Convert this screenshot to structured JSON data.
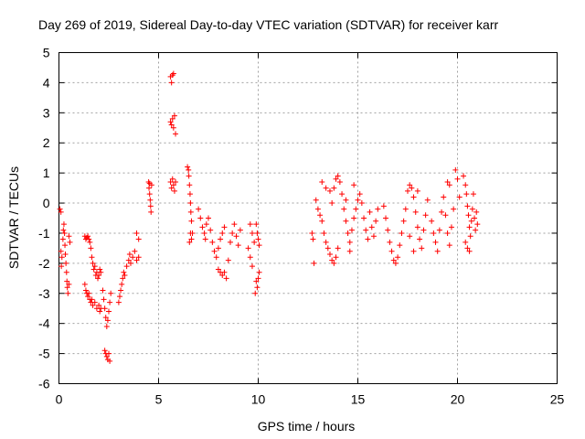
{
  "chart_data": {
    "type": "scatter",
    "title": "Day 269 of 2019, Sidereal Day-to-day VTEC variation (SDTVAR) for receiver karr",
    "xlabel": "GPS time / hours",
    "ylabel": "SDTVAR / TECUs",
    "xlim": [
      0,
      25
    ],
    "ylim": [
      -6,
      5
    ],
    "xticks": [
      0,
      5,
      10,
      15,
      20,
      25
    ],
    "yticks": [
      -6,
      -5,
      -4,
      -3,
      -2,
      -1,
      0,
      1,
      2,
      3,
      4,
      5
    ],
    "grid": true,
    "marker": "plus",
    "color": "#ff0000",
    "series": [
      {
        "name": "SDTVAR",
        "points": [
          [
            0.05,
            -0.2
          ],
          [
            0.1,
            -0.3
          ],
          [
            0.1,
            -1.6
          ],
          [
            0.12,
            -2.1
          ],
          [
            0.15,
            -1.8
          ],
          [
            0.2,
            -1.2
          ],
          [
            0.22,
            -0.9
          ],
          [
            0.25,
            -0.7
          ],
          [
            0.28,
            -1.0
          ],
          [
            0.3,
            -1.4
          ],
          [
            0.32,
            -1.7
          ],
          [
            0.35,
            -2.0
          ],
          [
            0.38,
            -2.3
          ],
          [
            0.4,
            -2.6
          ],
          [
            0.42,
            -2.8
          ],
          [
            0.45,
            -3.0
          ],
          [
            0.5,
            -2.7
          ],
          [
            0.5,
            -1.1
          ],
          [
            0.55,
            -1.3
          ],
          [
            1.3,
            -1.1
          ],
          [
            1.35,
            -1.2
          ],
          [
            1.4,
            -1.15
          ],
          [
            1.45,
            -1.1
          ],
          [
            1.5,
            -1.2
          ],
          [
            1.55,
            -1.3
          ],
          [
            1.6,
            -1.5
          ],
          [
            1.65,
            -1.8
          ],
          [
            1.7,
            -2.0
          ],
          [
            1.75,
            -2.2
          ],
          [
            1.8,
            -2.1
          ],
          [
            1.85,
            -2.4
          ],
          [
            1.9,
            -2.3
          ],
          [
            1.95,
            -2.5
          ],
          [
            2.0,
            -2.4
          ],
          [
            2.05,
            -2.2
          ],
          [
            2.1,
            -2.3
          ],
          [
            1.3,
            -2.7
          ],
          [
            1.35,
            -2.9
          ],
          [
            1.4,
            -3.0
          ],
          [
            1.45,
            -3.1
          ],
          [
            1.5,
            -3.0
          ],
          [
            1.55,
            -3.2
          ],
          [
            1.6,
            -3.3
          ],
          [
            1.65,
            -3.2
          ],
          [
            1.7,
            -3.4
          ],
          [
            1.8,
            -3.3
          ],
          [
            1.9,
            -3.5
          ],
          [
            2.0,
            -3.4
          ],
          [
            2.05,
            -3.6
          ],
          [
            2.1,
            -3.5
          ],
          [
            2.2,
            -2.9
          ],
          [
            2.25,
            -3.2
          ],
          [
            2.3,
            -3.5
          ],
          [
            2.35,
            -3.8
          ],
          [
            2.4,
            -4.1
          ],
          [
            2.45,
            -3.9
          ],
          [
            2.5,
            -3.6
          ],
          [
            2.55,
            -3.3
          ],
          [
            2.6,
            -3.0
          ],
          [
            2.3,
            -4.9
          ],
          [
            2.35,
            -5.0
          ],
          [
            2.4,
            -5.1
          ],
          [
            2.45,
            -5.2
          ],
          [
            2.5,
            -5.0
          ],
          [
            2.55,
            -5.25
          ],
          [
            3.0,
            -3.3
          ],
          [
            3.05,
            -3.1
          ],
          [
            3.1,
            -2.9
          ],
          [
            3.15,
            -2.7
          ],
          [
            3.2,
            -2.5
          ],
          [
            3.25,
            -2.3
          ],
          [
            3.3,
            -2.4
          ],
          [
            3.4,
            -2.1
          ],
          [
            3.5,
            -1.9
          ],
          [
            3.55,
            -1.7
          ],
          [
            3.6,
            -2.0
          ],
          [
            3.7,
            -1.8
          ],
          [
            3.8,
            -1.6
          ],
          [
            3.9,
            -1.9
          ],
          [
            4.0,
            -1.8
          ],
          [
            3.9,
            -1.0
          ],
          [
            4.0,
            -1.2
          ],
          [
            4.5,
            0.7
          ],
          [
            4.52,
            0.5
          ],
          [
            4.55,
            0.3
          ],
          [
            4.58,
            0.1
          ],
          [
            4.6,
            -0.1
          ],
          [
            4.62,
            -0.3
          ],
          [
            4.65,
            0.6
          ],
          [
            4.55,
            0.65
          ],
          [
            5.6,
            4.2
          ],
          [
            5.65,
            4.0
          ],
          [
            5.7,
            4.25
          ],
          [
            5.75,
            4.3
          ],
          [
            5.6,
            2.7
          ],
          [
            5.65,
            2.6
          ],
          [
            5.7,
            2.8
          ],
          [
            5.75,
            2.5
          ],
          [
            5.8,
            2.9
          ],
          [
            5.85,
            2.3
          ],
          [
            5.6,
            0.7
          ],
          [
            5.65,
            0.5
          ],
          [
            5.7,
            0.8
          ],
          [
            5.75,
            0.6
          ],
          [
            5.8,
            0.4
          ],
          [
            5.85,
            0.7
          ],
          [
            6.45,
            1.2
          ],
          [
            6.5,
            1.1
          ],
          [
            6.52,
            0.9
          ],
          [
            6.55,
            0.6
          ],
          [
            6.58,
            0.3
          ],
          [
            6.6,
            0.0
          ],
          [
            6.62,
            -0.3
          ],
          [
            6.65,
            -0.6
          ],
          [
            6.6,
            -1.0
          ],
          [
            6.55,
            -1.3
          ],
          [
            6.65,
            -1.2
          ],
          [
            6.7,
            -1.0
          ],
          [
            7.0,
            -0.2
          ],
          [
            7.1,
            -0.5
          ],
          [
            7.2,
            -0.8
          ],
          [
            7.3,
            -1.0
          ],
          [
            7.35,
            -1.2
          ],
          [
            7.4,
            -0.7
          ],
          [
            7.5,
            -0.5
          ],
          [
            7.6,
            -0.9
          ],
          [
            7.7,
            -1.3
          ],
          [
            7.8,
            -1.6
          ],
          [
            7.9,
            -1.8
          ],
          [
            8.0,
            -1.5
          ],
          [
            8.1,
            -1.2
          ],
          [
            8.2,
            -1.0
          ],
          [
            8.3,
            -0.8
          ],
          [
            8.0,
            -2.2
          ],
          [
            8.1,
            -2.3
          ],
          [
            8.2,
            -2.4
          ],
          [
            8.3,
            -2.3
          ],
          [
            8.4,
            -2.5
          ],
          [
            8.5,
            -1.9
          ],
          [
            8.6,
            -1.3
          ],
          [
            8.7,
            -1.0
          ],
          [
            8.8,
            -0.7
          ],
          [
            8.9,
            -1.1
          ],
          [
            9.0,
            -1.4
          ],
          [
            9.1,
            -0.9
          ],
          [
            9.5,
            -1.5
          ],
          [
            9.6,
            -1.8
          ],
          [
            9.7,
            -1.0
          ],
          [
            9.8,
            -1.3
          ],
          [
            9.7,
            -2.1
          ],
          [
            9.6,
            -0.7
          ],
          [
            9.9,
            -0.7
          ],
          [
            9.95,
            -1.0
          ],
          [
            10.0,
            -1.2
          ],
          [
            10.05,
            -1.4
          ],
          [
            9.9,
            -2.6
          ],
          [
            9.95,
            -2.8
          ],
          [
            10.0,
            -2.5
          ],
          [
            10.05,
            -2.3
          ],
          [
            9.85,
            -3.0
          ],
          [
            12.7,
            -1.0
          ],
          [
            12.75,
            -1.2
          ],
          [
            12.8,
            -2.0
          ],
          [
            12.9,
            0.1
          ],
          [
            13.0,
            -0.2
          ],
          [
            13.1,
            -0.4
          ],
          [
            13.2,
            -0.6
          ],
          [
            13.3,
            -1.0
          ],
          [
            13.4,
            -1.3
          ],
          [
            13.5,
            -1.5
          ],
          [
            13.6,
            -1.7
          ],
          [
            13.7,
            -1.9
          ],
          [
            13.8,
            -2.0
          ],
          [
            13.9,
            -1.8
          ],
          [
            14.0,
            -1.5
          ],
          [
            13.2,
            0.7
          ],
          [
            13.4,
            0.5
          ],
          [
            13.6,
            0.4
          ],
          [
            13.7,
            0.0
          ],
          [
            13.8,
            0.5
          ],
          [
            13.9,
            0.8
          ],
          [
            14.0,
            0.9
          ],
          [
            14.1,
            0.7
          ],
          [
            14.2,
            0.3
          ],
          [
            14.3,
            -0.2
          ],
          [
            14.4,
            -0.6
          ],
          [
            14.5,
            -1.0
          ],
          [
            14.6,
            -1.3
          ],
          [
            14.7,
            -0.9
          ],
          [
            14.8,
            -0.5
          ],
          [
            14.9,
            -0.2
          ],
          [
            15.0,
            0.1
          ],
          [
            15.1,
            0.3
          ],
          [
            15.2,
            0.0
          ],
          [
            15.3,
            -0.5
          ],
          [
            15.4,
            -0.9
          ],
          [
            15.5,
            -1.2
          ],
          [
            14.4,
            0.1
          ],
          [
            14.6,
            -1.6
          ],
          [
            14.8,
            0.6
          ],
          [
            15.6,
            -0.3
          ],
          [
            15.7,
            -0.8
          ],
          [
            15.8,
            -1.1
          ],
          [
            15.9,
            -0.6
          ],
          [
            16.0,
            -0.2
          ],
          [
            16.3,
            -0.1
          ],
          [
            16.4,
            -0.5
          ],
          [
            16.5,
            -0.9
          ],
          [
            16.6,
            -1.3
          ],
          [
            16.7,
            -1.6
          ],
          [
            16.8,
            -1.9
          ],
          [
            16.9,
            -2.0
          ],
          [
            17.0,
            -1.8
          ],
          [
            17.1,
            -1.4
          ],
          [
            17.2,
            -1.0
          ],
          [
            17.3,
            -0.6
          ],
          [
            17.4,
            -0.2
          ],
          [
            17.5,
            0.4
          ],
          [
            17.6,
            0.6
          ],
          [
            17.7,
            0.5
          ],
          [
            17.8,
            0.2
          ],
          [
            17.9,
            -0.3
          ],
          [
            18.0,
            -0.8
          ],
          [
            18.1,
            -1.2
          ],
          [
            18.2,
            -1.5
          ],
          [
            18.3,
            -0.9
          ],
          [
            18.4,
            -0.4
          ],
          [
            18.5,
            0.1
          ],
          [
            17.6,
            -1.1
          ],
          [
            17.8,
            -1.6
          ],
          [
            18.0,
            0.4
          ],
          [
            18.7,
            -0.6
          ],
          [
            18.8,
            -1.0
          ],
          [
            18.9,
            -1.3
          ],
          [
            19.0,
            -1.6
          ],
          [
            19.1,
            -0.9
          ],
          [
            19.2,
            -0.3
          ],
          [
            19.3,
            0.2
          ],
          [
            19.4,
            -0.4
          ],
          [
            19.5,
            -1.0
          ],
          [
            19.6,
            -1.4
          ],
          [
            19.7,
            -0.8
          ],
          [
            19.8,
            -0.2
          ],
          [
            19.9,
            1.1
          ],
          [
            20.0,
            0.8
          ],
          [
            20.1,
            0.2
          ],
          [
            19.5,
            0.7
          ],
          [
            19.6,
            0.6
          ],
          [
            20.3,
            0.9
          ],
          [
            20.4,
            0.6
          ],
          [
            20.45,
            0.3
          ],
          [
            20.5,
            -0.1
          ],
          [
            20.55,
            -0.4
          ],
          [
            20.6,
            -0.8
          ],
          [
            20.65,
            -1.1
          ],
          [
            20.7,
            -0.6
          ],
          [
            20.75,
            -0.2
          ],
          [
            20.8,
            0.3
          ],
          [
            20.85,
            -0.5
          ],
          [
            20.9,
            -0.9
          ],
          [
            21.0,
            -0.7
          ],
          [
            20.95,
            -0.3
          ],
          [
            20.4,
            -1.3
          ],
          [
            20.5,
            -1.5
          ],
          [
            20.6,
            -1.6
          ]
        ]
      }
    ]
  }
}
